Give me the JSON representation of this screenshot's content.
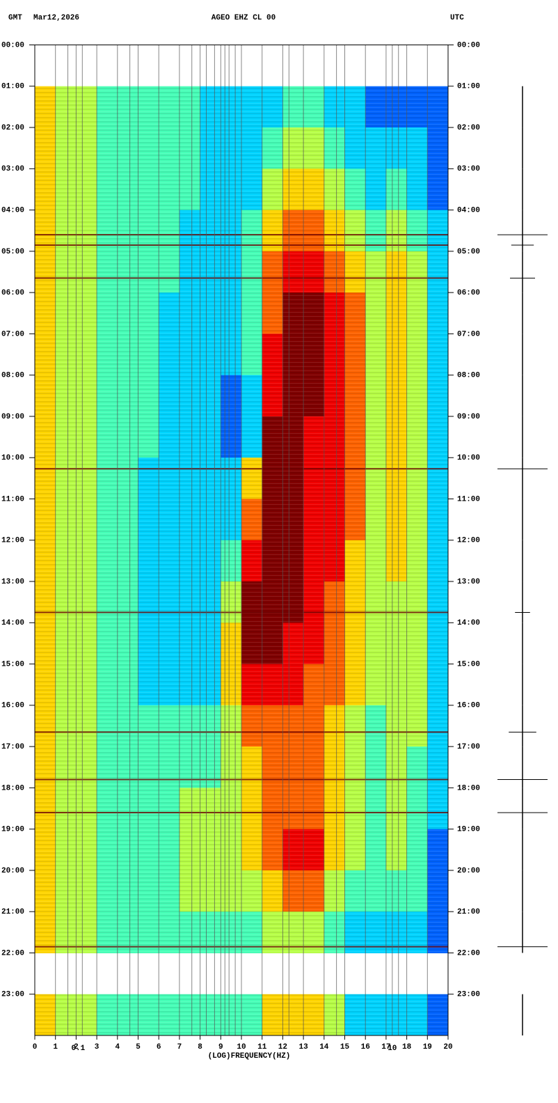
{
  "chart_data": {
    "type": "spectrogram",
    "title": "AGEO EHZ CL 00",
    "left_header": "GMT",
    "date": "Mar12,2026",
    "right_header": "UTC",
    "xlabel": "(LOG)FREQUENCY(HZ)",
    "xlim": [
      0,
      20
    ],
    "xticks": [
      0,
      1,
      2,
      3,
      4,
      5,
      6,
      7,
      8,
      9,
      10,
      11,
      12,
      13,
      14,
      15,
      16,
      17,
      18,
      19,
      20
    ],
    "log_xtick_labels": [
      {
        "value": 2.1,
        "label": "0.1"
      },
      {
        "value": 17.3,
        "label": "10"
      }
    ],
    "log_grid_x": [
      1.0,
      1.6,
      2.0,
      2.3,
      3.0,
      4.0,
      4.6,
      5.0,
      6.0,
      7.0,
      7.6,
      8.0,
      8.3,
      8.7,
      9.0,
      9.2,
      9.4,
      9.7,
      10.0,
      11.0,
      12.0,
      12.3,
      13.0,
      14.0,
      14.6,
      15.0,
      16.0,
      17.0,
      17.3,
      17.6,
      18.0,
      19.0
    ],
    "ylim": [
      0,
      24
    ],
    "yticks": [
      {
        "value": 0,
        "label": "00:00"
      },
      {
        "value": 1,
        "label": "01:00"
      },
      {
        "value": 2,
        "label": "02:00"
      },
      {
        "value": 3,
        "label": "03:00"
      },
      {
        "value": 4,
        "label": "04:00"
      },
      {
        "value": 5,
        "label": "05:00"
      },
      {
        "value": 6,
        "label": "06:00"
      },
      {
        "value": 7,
        "label": "07:00"
      },
      {
        "value": 8,
        "label": "08:00"
      },
      {
        "value": 9,
        "label": "09:00"
      },
      {
        "value": 10,
        "label": "10:00"
      },
      {
        "value": 11,
        "label": "11:00"
      },
      {
        "value": 12,
        "label": "12:00"
      },
      {
        "value": 13,
        "label": "13:00"
      },
      {
        "value": 14,
        "label": "14:00"
      },
      {
        "value": 15,
        "label": "15:00"
      },
      {
        "value": 16,
        "label": "16:00"
      },
      {
        "value": 17,
        "label": "17:00"
      },
      {
        "value": 18,
        "label": "18:00"
      },
      {
        "value": 19,
        "label": "19:00"
      },
      {
        "value": 20,
        "label": "20:00"
      },
      {
        "value": 21,
        "label": "21:00"
      },
      {
        "value": 22,
        "label": "22:00"
      },
      {
        "value": 23,
        "label": "23:00"
      }
    ],
    "zlim": [
      0,
      9
    ],
    "z": [
      null,
      [
        6,
        5,
        5,
        4,
        4,
        4,
        4,
        4,
        3,
        3,
        3,
        3,
        4,
        4,
        3,
        3,
        2,
        2,
        2,
        2
      ],
      [
        6,
        5,
        5,
        4,
        4,
        4,
        4,
        4,
        3,
        3,
        3,
        4,
        5,
        5,
        4,
        3,
        3,
        3,
        3,
        2
      ],
      [
        6,
        5,
        5,
        4,
        4,
        4,
        4,
        4,
        3,
        3,
        3,
        5,
        6,
        6,
        5,
        4,
        3,
        4,
        3,
        2
      ],
      [
        6,
        5,
        5,
        4,
        4,
        4,
        4,
        3,
        3,
        3,
        4,
        6,
        7,
        7,
        6,
        5,
        4,
        5,
        4,
        3
      ],
      [
        6,
        5,
        5,
        4,
        4,
        4,
        4,
        3,
        3,
        3,
        4,
        7,
        8,
        8,
        7,
        6,
        5,
        6,
        5,
        3
      ],
      [
        6,
        5,
        5,
        4,
        4,
        4,
        3,
        3,
        3,
        3,
        4,
        7,
        9,
        9,
        8,
        7,
        5,
        6,
        5,
        3
      ],
      [
        6,
        5,
        5,
        4,
        4,
        4,
        3,
        3,
        3,
        3,
        4,
        8,
        9,
        9,
        8,
        7,
        5,
        6,
        5,
        3
      ],
      [
        6,
        5,
        5,
        4,
        4,
        4,
        3,
        3,
        3,
        2,
        3,
        8,
        9,
        9,
        8,
        7,
        5,
        6,
        5,
        3
      ],
      [
        6,
        5,
        5,
        4,
        4,
        4,
        3,
        3,
        3,
        2,
        3,
        9,
        9,
        8,
        8,
        7,
        5,
        6,
        5,
        3
      ],
      [
        6,
        5,
        5,
        4,
        4,
        3,
        3,
        3,
        3,
        3,
        6,
        9,
        9,
        8,
        8,
        7,
        5,
        6,
        5,
        3
      ],
      [
        6,
        5,
        5,
        4,
        4,
        3,
        3,
        3,
        3,
        3,
        7,
        9,
        9,
        8,
        8,
        7,
        5,
        6,
        5,
        3
      ],
      [
        6,
        5,
        5,
        4,
        4,
        3,
        3,
        3,
        3,
        4,
        8,
        9,
        9,
        8,
        8,
        6,
        5,
        6,
        5,
        3
      ],
      [
        6,
        5,
        5,
        4,
        4,
        3,
        3,
        3,
        3,
        5,
        9,
        9,
        9,
        8,
        7,
        6,
        5,
        5,
        5,
        3
      ],
      [
        6,
        5,
        5,
        4,
        4,
        3,
        3,
        3,
        3,
        6,
        9,
        9,
        8,
        8,
        7,
        6,
        5,
        5,
        5,
        3
      ],
      [
        6,
        5,
        5,
        4,
        4,
        3,
        3,
        3,
        3,
        6,
        8,
        8,
        8,
        7,
        7,
        6,
        5,
        5,
        5,
        3
      ],
      [
        6,
        5,
        5,
        4,
        4,
        4,
        4,
        4,
        4,
        5,
        7,
        7,
        7,
        7,
        6,
        5,
        4,
        5,
        5,
        3
      ],
      [
        6,
        5,
        5,
        4,
        4,
        4,
        4,
        4,
        4,
        5,
        6,
        7,
        7,
        7,
        6,
        5,
        4,
        5,
        4,
        3
      ],
      [
        6,
        5,
        5,
        4,
        4,
        4,
        4,
        5,
        5,
        5,
        6,
        7,
        7,
        7,
        6,
        5,
        4,
        5,
        4,
        3
      ],
      [
        6,
        5,
        5,
        4,
        4,
        4,
        4,
        5,
        5,
        5,
        6,
        7,
        8,
        8,
        6,
        5,
        4,
        5,
        4,
        2
      ],
      [
        6,
        5,
        5,
        4,
        4,
        4,
        4,
        5,
        5,
        5,
        5,
        6,
        7,
        7,
        5,
        4,
        4,
        4,
        4,
        2
      ],
      [
        6,
        5,
        5,
        4,
        4,
        4,
        4,
        4,
        4,
        4,
        4,
        5,
        5,
        5,
        4,
        3,
        3,
        3,
        3,
        2
      ],
      null,
      [
        6,
        5,
        5,
        4,
        4,
        4,
        4,
        4,
        4,
        4,
        4,
        6,
        6,
        6,
        5,
        3,
        3,
        3,
        3,
        2
      ]
    ],
    "events": [
      {
        "time": 4.6,
        "amplitude": 1.0
      },
      {
        "time": 4.85,
        "amplitude": 0.45
      },
      {
        "time": 5.65,
        "amplitude": 0.5
      },
      {
        "time": 10.27,
        "amplitude": 1.0
      },
      {
        "time": 13.75,
        "amplitude": 0.3
      },
      {
        "time": 16.65,
        "amplitude": 0.55
      },
      {
        "time": 17.8,
        "amplitude": 1.0
      },
      {
        "time": 18.6,
        "amplitude": 1.0
      },
      {
        "time": 21.85,
        "amplitude": 1.0
      }
    ]
  }
}
